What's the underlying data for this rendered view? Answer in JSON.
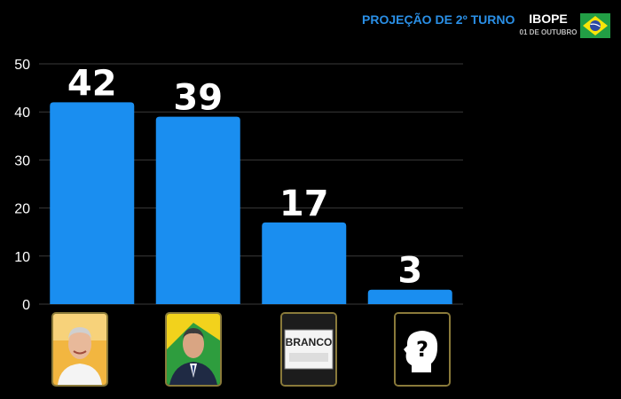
{
  "header": {
    "title": "PROJEÇÃO DE 2º TURNO",
    "source": "IBOPE",
    "date": "01 DE OUTUBRO",
    "flag_icon": "brazil-flag-icon"
  },
  "colors": {
    "background": "#000000",
    "bar": "#1a8ef0",
    "title": "#2a8fe6",
    "grid": "#3a3a3a"
  },
  "chart_data": {
    "type": "bar",
    "categories": [
      "candidate-1",
      "candidate-2",
      "BRANCO",
      "?"
    ],
    "values": [
      42,
      39,
      17,
      3
    ],
    "title": "PROJEÇÃO DE 2º TURNO",
    "xlabel": "",
    "ylabel": "",
    "ylim": [
      0,
      50
    ],
    "yticks": [
      0,
      10,
      20,
      30,
      40,
      50
    ],
    "grid": true,
    "category_icons": [
      "candidate-portrait-1",
      "candidate-portrait-2",
      "branco-ballot-icon",
      "unknown-person-icon"
    ]
  },
  "icons": {
    "branco_label": "BRANCO",
    "unknown_symbol": "?"
  }
}
